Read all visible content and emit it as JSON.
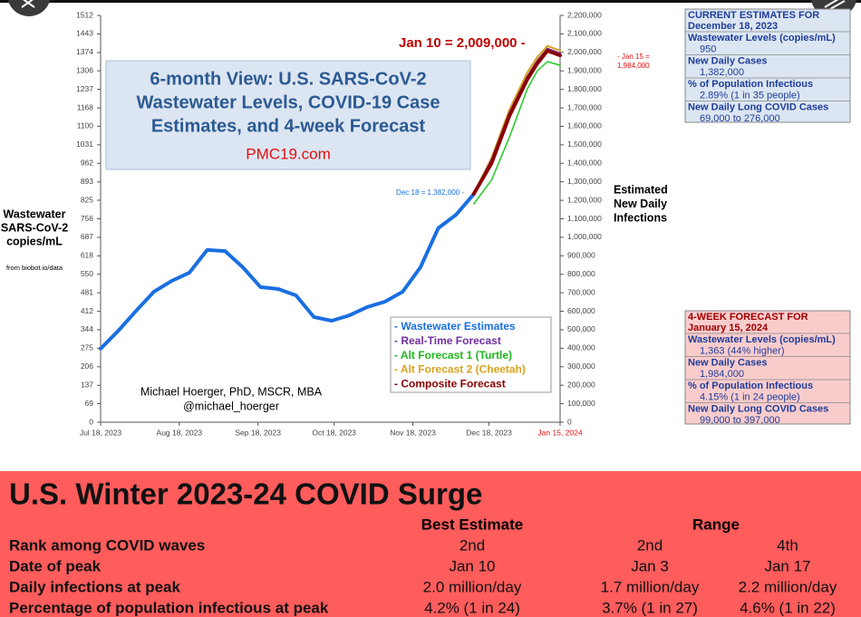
{
  "chart_data": {
    "type": "line",
    "title": [
      "6-month View: U.S. SARS-CoV-2",
      "Wastewater Levels, COVID-19 Case",
      "Estimates, and 4-week Forecast"
    ],
    "source": "PMC19.com",
    "ylabel": [
      "Wastewater",
      "SARS-CoV-2",
      "copies/mL"
    ],
    "y2label": [
      "Estimated",
      "New Daily",
      "Infections"
    ],
    "note": "from biobot.io/data",
    "author": [
      "Michael Hoerger, PhD, MSCR, MBA",
      "@michael_hoerger"
    ],
    "annotations": {
      "peak": "Jan 10 = 2,009,000 -",
      "end": [
        "- Jan 15 =",
        "1,984,000"
      ],
      "current": "Dec 18 = 1,382,000 -"
    },
    "xlim": [
      "2023-07-18",
      "2024-01-15"
    ],
    "xticks": [
      {
        "value": "2023-07-18",
        "label": "Jul 18, 2023"
      },
      {
        "value": "2023-08-18",
        "label": "Aug 18, 2023"
      },
      {
        "value": "2023-09-18",
        "label": "Sep 18, 2023"
      },
      {
        "value": "2023-10-18",
        "label": "Oct 18, 2023"
      },
      {
        "value": "2023-11-18",
        "label": "Nov 18, 2023"
      },
      {
        "value": "2023-12-18",
        "label": "Dec 18, 2023"
      },
      {
        "value": "2024-01-15",
        "label": "Jan 15, 2024"
      }
    ],
    "ylim": [
      0,
      1512
    ],
    "yticks": [
      0,
      69,
      137,
      206,
      275,
      344,
      412,
      481,
      550,
      618,
      687,
      756,
      825,
      893,
      962,
      1031,
      1100,
      1168,
      1237,
      1306,
      1374,
      1443,
      1512
    ],
    "y2lim": [
      0,
      2200000
    ],
    "y2ticks": [
      0,
      {
        "value": 100000,
        "label": "100,000"
      },
      {
        "value": 200000,
        "label": "200,000"
      },
      {
        "value": 300000,
        "label": "300,000"
      },
      {
        "value": 400000,
        "label": "400,000"
      },
      {
        "value": 500000,
        "label": "500,000"
      },
      {
        "value": 600000,
        "label": "600,000"
      },
      {
        "value": 700000,
        "label": "700,000"
      },
      {
        "value": 800000,
        "label": "800,000"
      },
      {
        "value": 900000,
        "label": "900,000"
      },
      {
        "value": 1000000,
        "label": "1,000,000"
      },
      {
        "value": 1100000,
        "label": "1,100,000"
      },
      {
        "value": 1200000,
        "label": "1,200,000"
      },
      {
        "value": 1300000,
        "label": "1,300,000"
      },
      {
        "value": 1400000,
        "label": "1,400,000"
      },
      {
        "value": 1500000,
        "label": "1,500,000"
      },
      {
        "value": 1600000,
        "label": "1,600,000"
      },
      {
        "value": 1700000,
        "label": "1,700,000"
      },
      {
        "value": 1800000,
        "label": "1,800,000"
      },
      {
        "value": 1900000,
        "label": "1,900,000"
      },
      {
        "value": 2000000,
        "label": "2,000,000"
      },
      {
        "value": 2100000,
        "label": "2,100,000"
      },
      {
        "value": 2200000,
        "label": "2,200,000"
      }
    ],
    "series": [
      {
        "name": "- Wastewater Estimates",
        "color": "#1a6fe0",
        "width": 4,
        "axis": "y",
        "x": [
          "2023-07-18",
          "2023-07-25",
          "2023-08-01",
          "2023-08-08",
          "2023-08-15",
          "2023-08-22",
          "2023-08-29",
          "2023-09-05",
          "2023-09-12",
          "2023-09-19",
          "2023-09-26",
          "2023-10-03",
          "2023-10-10",
          "2023-10-17",
          "2023-10-24",
          "2023-10-31",
          "2023-11-07",
          "2023-11-14",
          "2023-11-21",
          "2023-11-28",
          "2023-12-05",
          "2023-12-12"
        ],
        "values": [
          273,
          340,
          414,
          485,
          525,
          556,
          640,
          636,
          576,
          502,
          495,
          471,
          391,
          377,
          397,
          428,
          448,
          485,
          576,
          721,
          771,
          848
        ]
      },
      {
        "name": "- Real-Time Forecast",
        "color": "#7030a0",
        "width": 2,
        "axis": "y2",
        "x": [
          "2023-12-12",
          "2023-12-19",
          "2023-12-26",
          "2024-01-02",
          "2024-01-06",
          "2024-01-10",
          "2024-01-15"
        ],
        "values": [
          1235000,
          1420000,
          1672000,
          1868000,
          1955000,
          2020000,
          1995000
        ]
      },
      {
        "name": "- Alt Forecast 1 (Turtle)",
        "color": "#22cc22",
        "width": 1.5,
        "axis": "y2",
        "x": [
          "2023-12-12",
          "2023-12-19",
          "2023-12-26",
          "2024-01-02",
          "2024-01-06",
          "2024-01-10",
          "2024-01-15"
        ],
        "values": [
          1181000,
          1310000,
          1540000,
          1800000,
          1900000,
          1950000,
          1930000
        ]
      },
      {
        "name": "- Alt Forecast 2 (Cheetah)",
        "color": "#d9a21e",
        "width": 2,
        "axis": "y2",
        "x": [
          "2023-12-12",
          "2023-12-19",
          "2023-12-26",
          "2024-01-02",
          "2024-01-06",
          "2024-01-10",
          "2024-01-15"
        ],
        "values": [
          1235000,
          1430000,
          1690000,
          1890000,
          1975000,
          2035000,
          2010000
        ]
      },
      {
        "name": "- Composite Forecast",
        "color": "#8b0000",
        "width": 4,
        "axis": "y2",
        "x": [
          "2023-12-12",
          "2023-12-19",
          "2023-12-26",
          "2024-01-02",
          "2024-01-06",
          "2024-01-10",
          "2024-01-15"
        ],
        "values": [
          1235000,
          1401000,
          1656000,
          1852000,
          1940000,
          2009000,
          1984000
        ]
      }
    ]
  },
  "current_estimates": {
    "title": "CURRENT ESTIMATES FOR",
    "date": "December 18, 2023",
    "items": [
      {
        "label": "Wastewater Levels (copies/mL)",
        "value": "950"
      },
      {
        "label": "New Daily Cases",
        "value": "1,382,000"
      },
      {
        "label": "% of Population Infectious",
        "value": "2.89% (1 in 35 people)"
      },
      {
        "label": "New Daily Long COVID Cases",
        "value": "69,000 to 276,000"
      }
    ]
  },
  "forecast": {
    "title": "4-WEEK FORECAST FOR",
    "date": "January 15, 2024",
    "items": [
      {
        "label": "Wastewater Levels (copies/mL)",
        "value": "1,363 (44% higher)"
      },
      {
        "label": "New Daily Cases",
        "value": "1,984,000"
      },
      {
        "label": "% of Population Infectious",
        "value": "4.15% (1 in 24 people)"
      },
      {
        "label": "New Daily Long COVID Cases",
        "value": "99,000 to 397,000"
      }
    ]
  },
  "table": {
    "title": "U.S. Winter 2023-24 COVID Surge",
    "headers": [
      "Best Estimate",
      "Range"
    ],
    "rows": [
      [
        "Rank among COVID waves",
        "2nd",
        "2nd",
        "4th"
      ],
      [
        "Date of peak",
        "Jan 10",
        "Jan 3",
        "Jan 17"
      ],
      [
        "Daily infections at peak",
        "2.0 million/day",
        "1.7 million/day",
        "2.2 million/day"
      ],
      [
        "Percentage of population infectious at peak",
        "4.2% (1 in 24)",
        "3.7% (1 in 27)",
        "4.6% (1 in 22)"
      ]
    ]
  }
}
